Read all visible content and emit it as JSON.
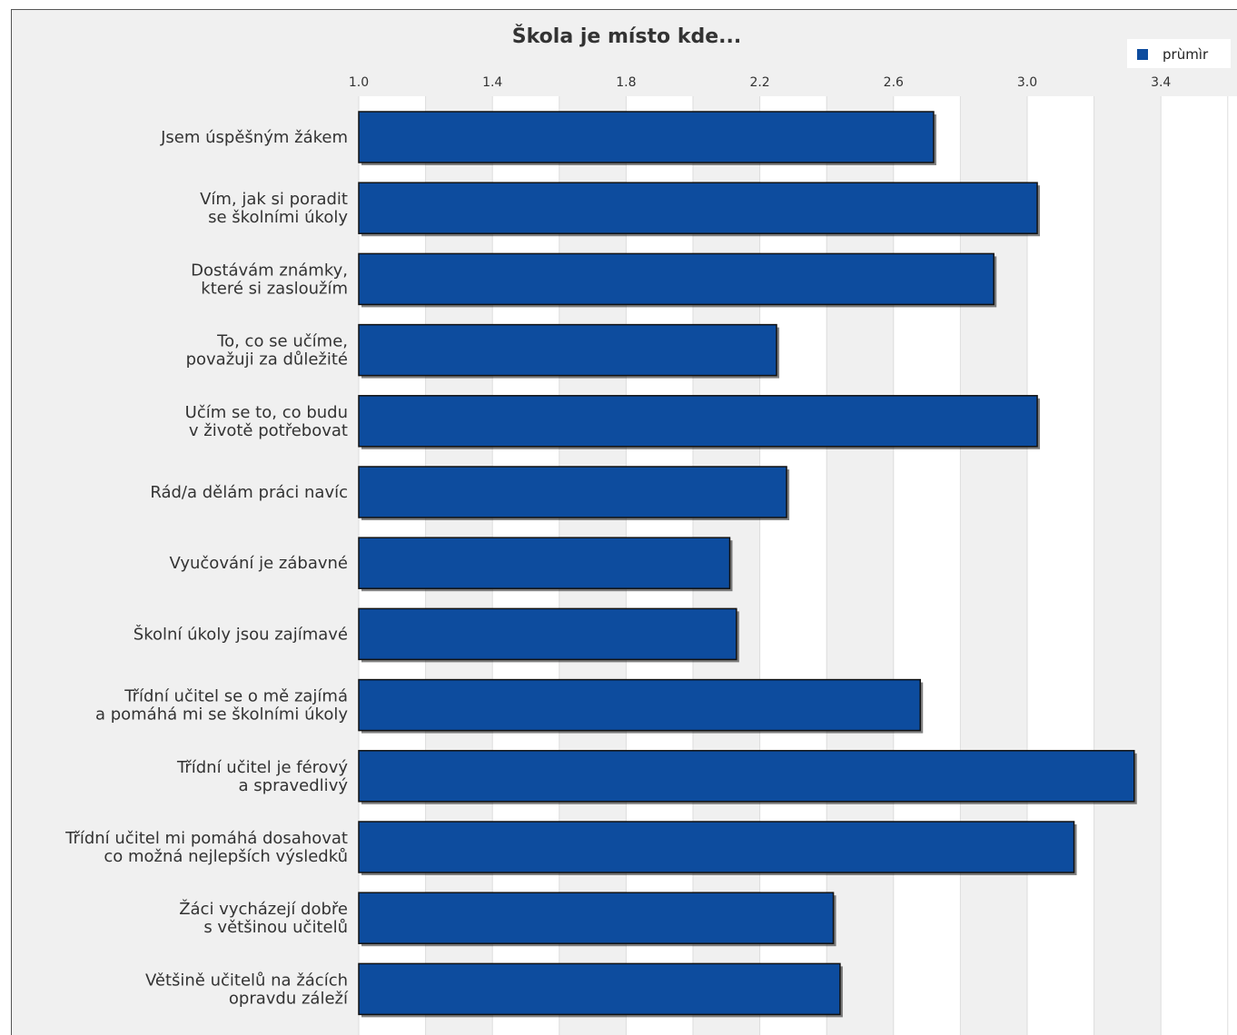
{
  "chart_data": {
    "type": "bar",
    "orientation": "horizontal",
    "title": "Škola je místo kde...",
    "xlabel": "",
    "ylabel": "",
    "xlim": [
      1.0,
      3.6
    ],
    "ticks": [
      "1.0",
      "1.4",
      "1.8",
      "2.2",
      "2.6",
      "3.0",
      "3.4"
    ],
    "tick_values": [
      1.0,
      1.4,
      1.8,
      2.2,
      2.6,
      3.0,
      3.4
    ],
    "grid": true,
    "legend_position": "top-right",
    "categories": [
      [
        "Jsem úspěšným žákem"
      ],
      [
        "Vím, jak si poradit",
        "se školními úkoly"
      ],
      [
        "Dostávám známky,",
        "které si zasloužím"
      ],
      [
        "To, co se učíme,",
        "považuji za důležité"
      ],
      [
        "Učím se to, co budu",
        "v životě potřebovat"
      ],
      [
        "Rád/a dělám práci navíc"
      ],
      [
        "Vyučování je zábavné"
      ],
      [
        "Školní úkoly jsou zajímavé"
      ],
      [
        "Třídní učitel se o mě zajímá",
        "a pomáhá mi se školními úkoly"
      ],
      [
        "Třídní učitel je férový",
        "a spravedlivý"
      ],
      [
        "Třídní učitel mi pomáhá dosahovat",
        "co možná nejlepších výsledků"
      ],
      [
        "Žáci vycházejí dobře",
        "s většinou učitelů"
      ],
      [
        "Většině učitelů na žácích",
        "opravdu záleží"
      ]
    ],
    "series": [
      {
        "name": "prùmìr",
        "color": "#0d4c9e",
        "values": [
          2.72,
          3.03,
          2.9,
          2.25,
          3.03,
          2.28,
          2.11,
          2.13,
          2.68,
          3.32,
          3.14,
          2.42,
          2.44
        ]
      }
    ]
  }
}
